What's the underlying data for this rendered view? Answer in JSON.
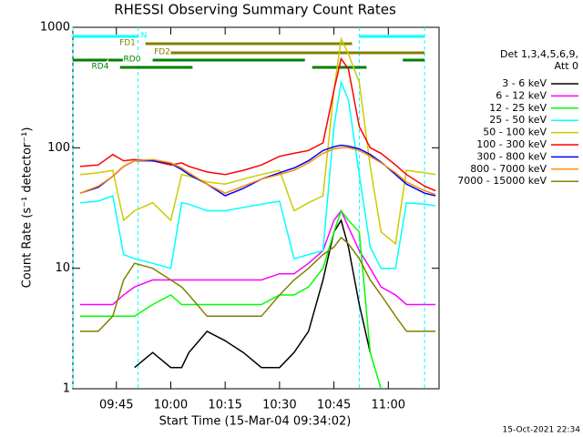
{
  "chart_data": {
    "type": "line",
    "title": "RHESSI Observing Summary Count Rates",
    "xlabel": "Start Time (15-Mar-04 09:34:02)",
    "ylabel": "Count Rate (s⁻¹ detector⁻¹)",
    "legend_title": [
      "Det 1,3,4,5,6,9,",
      "Att 0"
    ],
    "timestamp": "15-Oct-2021 22:34",
    "log_y": true,
    "legend": "right",
    "xlim": [
      "09:33",
      "11:14"
    ],
    "xticks": [
      "09:45",
      "10:00",
      "10:15",
      "10:30",
      "10:45",
      "11:00"
    ],
    "ylim": [
      1,
      1000
    ],
    "yticks": [
      1,
      10,
      100,
      1000
    ],
    "x": [
      "09:35",
      "09:40",
      "09:44",
      "09:47",
      "09:50",
      "09:55",
      "10:00",
      "10:03",
      "10:05",
      "10:10",
      "10:15",
      "10:20",
      "10:25",
      "10:30",
      "10:34",
      "10:38",
      "10:42",
      "10:45",
      "10:47",
      "10:49",
      "10:52",
      "10:55",
      "10:58",
      "11:02",
      "11:05",
      "11:10",
      "11:13"
    ],
    "series": [
      {
        "name": "3 - 6 keV",
        "color": "#000000",
        "values": [
          null,
          null,
          null,
          null,
          1.5,
          2,
          1.5,
          1.5,
          2,
          3,
          2.5,
          2,
          1.5,
          1.5,
          2,
          3,
          8,
          20,
          25,
          15,
          5,
          2,
          null,
          null,
          null,
          null,
          null
        ]
      },
      {
        "name": "6 - 12 keV",
        "color": "#ff00ff",
        "values": [
          5,
          5,
          5,
          6,
          7,
          8,
          8,
          8,
          8,
          8,
          8,
          8,
          8,
          9,
          9,
          11,
          14,
          25,
          30,
          22,
          14,
          10,
          7,
          6,
          5,
          5,
          5
        ]
      },
      {
        "name": "12 - 25 keV",
        "color": "#00ff00",
        "values": [
          4,
          4,
          4,
          4,
          4,
          5,
          6,
          5,
          5,
          5,
          5,
          5,
          5,
          6,
          6,
          7,
          10,
          20,
          30,
          25,
          20,
          2,
          1,
          null,
          null,
          null,
          null
        ]
      },
      {
        "name": "25 - 50 keV",
        "color": "#00ffff",
        "values": [
          35,
          36,
          40,
          13,
          12,
          11,
          10,
          35,
          34,
          30,
          30,
          32,
          34,
          36,
          12,
          13,
          14,
          150,
          350,
          250,
          60,
          15,
          10,
          10,
          35,
          34,
          33
        ]
      },
      {
        "name": "50 - 100 keV",
        "color": "#cccc00",
        "values": [
          60,
          62,
          65,
          25,
          30,
          35,
          25,
          60,
          58,
          52,
          50,
          55,
          60,
          65,
          30,
          35,
          40,
          300,
          800,
          600,
          350,
          70,
          20,
          16,
          65,
          62,
          60
        ]
      },
      {
        "name": "100 - 300 keV",
        "color": "#ff0000",
        "values": [
          70,
          72,
          88,
          78,
          80,
          78,
          72,
          75,
          70,
          63,
          60,
          65,
          72,
          85,
          90,
          95,
          110,
          300,
          550,
          450,
          150,
          100,
          90,
          72,
          60,
          48,
          44
        ]
      },
      {
        "name": "300 - 800 keV",
        "color": "#0000ff",
        "values": [
          42,
          47,
          58,
          70,
          78,
          78,
          74,
          66,
          60,
          50,
          40,
          46,
          55,
          62,
          68,
          78,
          95,
          102,
          105,
          103,
          98,
          88,
          76,
          60,
          50,
          42,
          40
        ]
      },
      {
        "name": "800 - 7000 keV",
        "color": "#ff8c00",
        "values": [
          42,
          48,
          58,
          70,
          78,
          80,
          75,
          68,
          62,
          50,
          42,
          48,
          55,
          60,
          65,
          75,
          90,
          98,
          100,
          100,
          95,
          85,
          75,
          62,
          52,
          44,
          41
        ]
      },
      {
        "name": "7000 - 15000 keV",
        "color": "#808000",
        "values": [
          3,
          3,
          4,
          8,
          11,
          10,
          8,
          7,
          6,
          4,
          4,
          4,
          4,
          6,
          8,
          10,
          13,
          15,
          18,
          16,
          12,
          8,
          6,
          4,
          3,
          3,
          3
        ]
      }
    ],
    "flags": [
      {
        "label": "N",
        "color": "#00ffff",
        "segments": [
          [
            "09:33",
            "09:51"
          ],
          [
            "10:52",
            "11:10"
          ]
        ]
      },
      {
        "label": "FD1",
        "color": "#808000",
        "segments": [
          [
            "09:53",
            "10:50"
          ]
        ]
      },
      {
        "label": "FD2",
        "color": "#808000",
        "segments": [
          [
            "10:00",
            "11:10"
          ]
        ]
      },
      {
        "label": "RD0",
        "color": "#008000",
        "segments": [
          [
            "09:33",
            "09:48"
          ],
          [
            "09:55",
            "10:37"
          ],
          [
            "11:04",
            "11:10"
          ]
        ]
      },
      {
        "label": "RD4",
        "color": "#008000",
        "segments": [
          [
            "09:46",
            "10:06"
          ],
          [
            "10:39",
            "10:54"
          ]
        ]
      }
    ]
  }
}
